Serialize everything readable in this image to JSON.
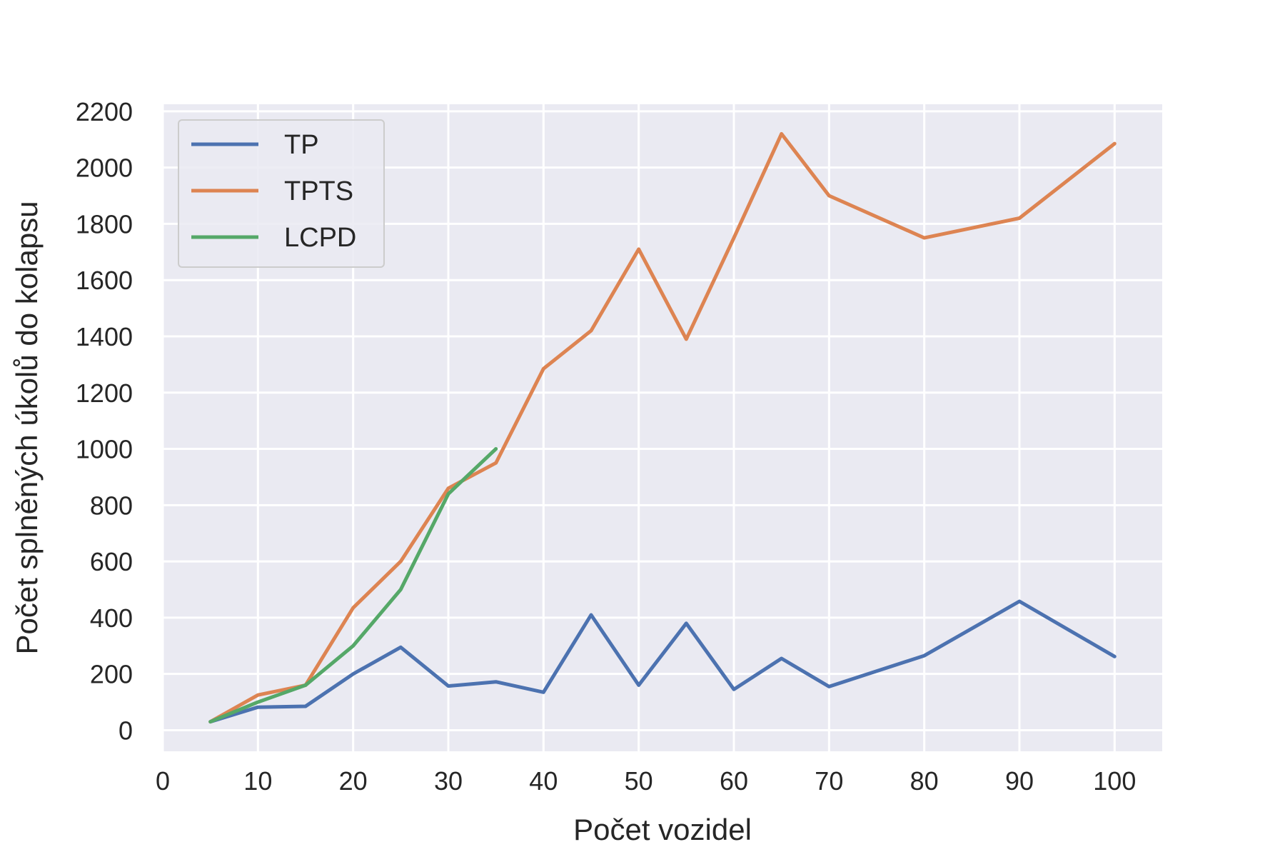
{
  "chart_data": {
    "type": "line",
    "title": "",
    "xlabel": "Počet vozidel",
    "ylabel": "Počet splněných úkolů do kolapsu",
    "xlim": [
      0,
      105
    ],
    "ylim": [
      -75,
      2225
    ],
    "xticks": [
      0,
      10,
      20,
      30,
      40,
      50,
      60,
      70,
      80,
      90,
      100
    ],
    "yticks": [
      0,
      200,
      400,
      600,
      800,
      1000,
      1200,
      1400,
      1600,
      1800,
      2000,
      2200
    ],
    "grid": true,
    "legend_position": "top-left",
    "series": [
      {
        "name": "TP",
        "color": "#4c72b0",
        "x": [
          5,
          10,
          15,
          20,
          25,
          30,
          35,
          40,
          45,
          50,
          55,
          60,
          65,
          70,
          80,
          90,
          100
        ],
        "y": [
          30,
          82,
          85,
          200,
          295,
          157,
          172,
          135,
          410,
          160,
          380,
          145,
          255,
          155,
          265,
          458,
          262
        ]
      },
      {
        "name": "TPTS",
        "color": "#dd8452",
        "x": [
          5,
          10,
          15,
          20,
          25,
          30,
          35,
          40,
          45,
          50,
          55,
          60,
          65,
          70,
          80,
          90,
          100
        ],
        "y": [
          30,
          125,
          160,
          435,
          600,
          860,
          950,
          1285,
          1420,
          1710,
          1390,
          1750,
          2120,
          1900,
          1750,
          1820,
          2085
        ]
      },
      {
        "name": "LCPD",
        "color": "#55a868",
        "x": [
          5,
          10,
          15,
          20,
          25,
          30,
          35
        ],
        "y": [
          30,
          100,
          160,
          300,
          500,
          840,
          1000
        ]
      }
    ]
  }
}
